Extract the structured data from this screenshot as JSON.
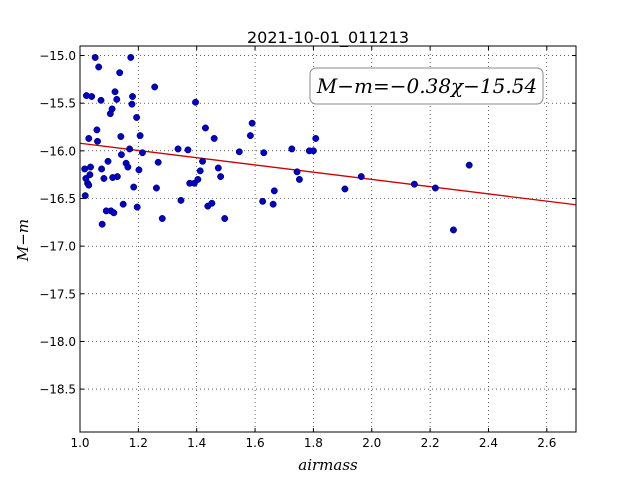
{
  "chart_data": {
    "type": "scatter",
    "title": "2021-10-01_011213",
    "xlabel": "airmass",
    "ylabel": "M−m",
    "xlim": [
      1.0,
      2.7
    ],
    "ylim": [
      -18.95,
      -14.9
    ],
    "y_inverted": true,
    "grid": true,
    "x_ticks": [
      1.0,
      1.2,
      1.4,
      1.6,
      1.8,
      2.0,
      2.2,
      2.4,
      2.6
    ],
    "x_tick_labels": [
      "1.0",
      "1.2",
      "1.4",
      "1.6",
      "1.8",
      "2.0",
      "2.2",
      "2.4",
      "2.6"
    ],
    "y_ticks": [
      -15.0,
      -15.5,
      -16.0,
      -16.5,
      -17.0,
      -17.5,
      -18.0,
      -18.5
    ],
    "y_tick_labels": [
      "−15.0",
      "−15.5",
      "−16.0",
      "−16.5",
      "−17.0",
      "−17.5",
      "−18.0",
      "−18.5"
    ],
    "fit": {
      "slope": -0.38,
      "intercept": -15.54,
      "label": "M−m=−0.38χ−15.54",
      "color": "#cc0000"
    },
    "point_color": "#0000cc",
    "points": [
      [
        1.016,
        -16.19
      ],
      [
        1.018,
        -16.47
      ],
      [
        1.02,
        -16.29
      ],
      [
        1.022,
        -15.42
      ],
      [
        1.026,
        -16.34
      ],
      [
        1.03,
        -15.87
      ],
      [
        1.03,
        -16.36
      ],
      [
        1.034,
        -16.25
      ],
      [
        1.036,
        -16.17
      ],
      [
        1.04,
        -15.43
      ],
      [
        1.052,
        -15.02
      ],
      [
        1.058,
        -15.78
      ],
      [
        1.06,
        -15.9
      ],
      [
        1.064,
        -15.12
      ],
      [
        1.072,
        -15.47
      ],
      [
        1.074,
        -16.19
      ],
      [
        1.076,
        -16.77
      ],
      [
        1.082,
        -16.29
      ],
      [
        1.09,
        -16.63
      ],
      [
        1.096,
        -16.11
      ],
      [
        1.104,
        -15.61
      ],
      [
        1.106,
        -16.63
      ],
      [
        1.11,
        -15.56
      ],
      [
        1.112,
        -16.28
      ],
      [
        1.116,
        -16.65
      ],
      [
        1.12,
        -15.38
      ],
      [
        1.126,
        -15.46
      ],
      [
        1.128,
        -16.27
      ],
      [
        1.136,
        -15.18
      ],
      [
        1.14,
        -15.85
      ],
      [
        1.142,
        -16.04
      ],
      [
        1.148,
        -16.56
      ],
      [
        1.158,
        -16.13
      ],
      [
        1.164,
        -16.17
      ],
      [
        1.17,
        -15.98
      ],
      [
        1.174,
        -15.02
      ],
      [
        1.178,
        -15.51
      ],
      [
        1.18,
        -15.43
      ],
      [
        1.184,
        -16.38
      ],
      [
        1.194,
        -15.65
      ],
      [
        1.196,
        -16.59
      ],
      [
        1.202,
        -16.2
      ],
      [
        1.206,
        -15.84
      ],
      [
        1.214,
        -16.02
      ],
      [
        1.256,
        -15.33
      ],
      [
        1.262,
        -16.39
      ],
      [
        1.268,
        -16.12
      ],
      [
        1.282,
        -16.71
      ],
      [
        1.336,
        -15.98
      ],
      [
        1.346,
        -16.52
      ],
      [
        1.37,
        -15.99
      ],
      [
        1.376,
        -16.34
      ],
      [
        1.392,
        -16.34
      ],
      [
        1.396,
        -15.49
      ],
      [
        1.404,
        -16.3
      ],
      [
        1.412,
        -16.21
      ],
      [
        1.42,
        -16.11
      ],
      [
        1.43,
        -15.76
      ],
      [
        1.438,
        -16.58
      ],
      [
        1.452,
        -16.55
      ],
      [
        1.46,
        -15.87
      ],
      [
        1.474,
        -16.18
      ],
      [
        1.482,
        -16.27
      ],
      [
        1.496,
        -16.71
      ],
      [
        1.546,
        -16.01
      ],
      [
        1.584,
        -15.84
      ],
      [
        1.59,
        -15.71
      ],
      [
        1.626,
        -16.53
      ],
      [
        1.63,
        -16.02
      ],
      [
        1.662,
        -16.56
      ],
      [
        1.666,
        -16.42
      ],
      [
        1.726,
        -15.98
      ],
      [
        1.744,
        -16.22
      ],
      [
        1.752,
        -16.3
      ],
      [
        1.786,
        -16.0
      ],
      [
        1.8,
        -16.0
      ],
      [
        1.808,
        -15.87
      ],
      [
        1.908,
        -16.4
      ],
      [
        1.964,
        -16.27
      ],
      [
        2.146,
        -16.35
      ],
      [
        2.218,
        -16.39
      ],
      [
        2.28,
        -16.83
      ],
      [
        2.334,
        -16.15
      ]
    ]
  }
}
